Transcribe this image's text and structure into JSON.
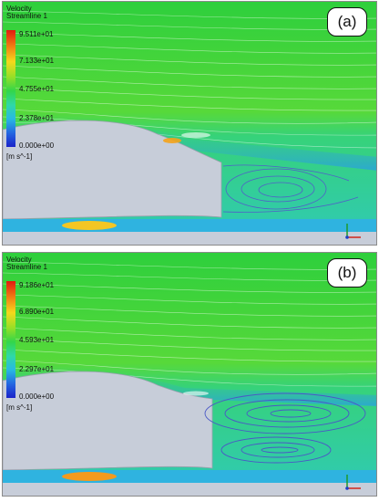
{
  "panels": [
    {
      "label": "(a)",
      "legend": {
        "title": "Velocity",
        "subtitle": "Streamline 1",
        "ticks": [
          "9.511e+01",
          "7.133e+01",
          "4.755e+01",
          "2.378e+01",
          "0.000e+00"
        ],
        "unit": "[m s^-1]"
      }
    },
    {
      "label": "(b)",
      "legend": {
        "title": "Velocity",
        "subtitle": "Streamline 1",
        "ticks": [
          "9.186e+01",
          "6.890e+01",
          "4.593e+01",
          "2.297e+01",
          "0.000e+00"
        ],
        "unit": "[m s^-1]"
      }
    }
  ],
  "colors": {
    "colormap_top": "#e31a0f",
    "colormap_mid": "#32d64a",
    "colormap_bottom": "#1b23c9",
    "body_fill": "#c7cdd9"
  }
}
